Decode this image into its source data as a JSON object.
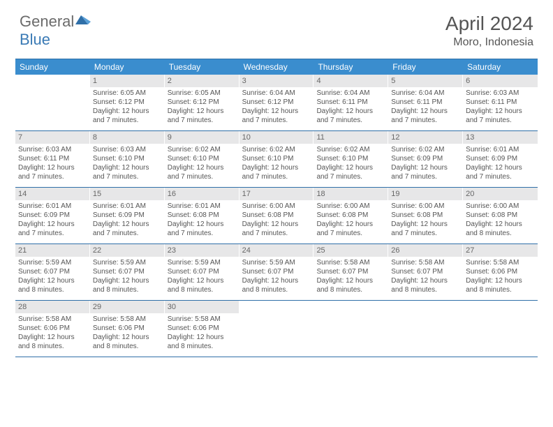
{
  "logo": {
    "text1": "General",
    "text2": "Blue"
  },
  "title": "April 2024",
  "location": "Moro, Indonesia",
  "colors": {
    "header_bg": "#3a8dce",
    "border": "#2f6fa8",
    "daynum_bg": "#e7e7e8",
    "text": "#555555"
  },
  "day_names": [
    "Sunday",
    "Monday",
    "Tuesday",
    "Wednesday",
    "Thursday",
    "Friday",
    "Saturday"
  ],
  "weeks": [
    [
      {
        "n": "",
        "sr": "",
        "ss": "",
        "dl1": "",
        "dl2": ""
      },
      {
        "n": "1",
        "sr": "Sunrise: 6:05 AM",
        "ss": "Sunset: 6:12 PM",
        "dl1": "Daylight: 12 hours",
        "dl2": "and 7 minutes."
      },
      {
        "n": "2",
        "sr": "Sunrise: 6:05 AM",
        "ss": "Sunset: 6:12 PM",
        "dl1": "Daylight: 12 hours",
        "dl2": "and 7 minutes."
      },
      {
        "n": "3",
        "sr": "Sunrise: 6:04 AM",
        "ss": "Sunset: 6:12 PM",
        "dl1": "Daylight: 12 hours",
        "dl2": "and 7 minutes."
      },
      {
        "n": "4",
        "sr": "Sunrise: 6:04 AM",
        "ss": "Sunset: 6:11 PM",
        "dl1": "Daylight: 12 hours",
        "dl2": "and 7 minutes."
      },
      {
        "n": "5",
        "sr": "Sunrise: 6:04 AM",
        "ss": "Sunset: 6:11 PM",
        "dl1": "Daylight: 12 hours",
        "dl2": "and 7 minutes."
      },
      {
        "n": "6",
        "sr": "Sunrise: 6:03 AM",
        "ss": "Sunset: 6:11 PM",
        "dl1": "Daylight: 12 hours",
        "dl2": "and 7 minutes."
      }
    ],
    [
      {
        "n": "7",
        "sr": "Sunrise: 6:03 AM",
        "ss": "Sunset: 6:11 PM",
        "dl1": "Daylight: 12 hours",
        "dl2": "and 7 minutes."
      },
      {
        "n": "8",
        "sr": "Sunrise: 6:03 AM",
        "ss": "Sunset: 6:10 PM",
        "dl1": "Daylight: 12 hours",
        "dl2": "and 7 minutes."
      },
      {
        "n": "9",
        "sr": "Sunrise: 6:02 AM",
        "ss": "Sunset: 6:10 PM",
        "dl1": "Daylight: 12 hours",
        "dl2": "and 7 minutes."
      },
      {
        "n": "10",
        "sr": "Sunrise: 6:02 AM",
        "ss": "Sunset: 6:10 PM",
        "dl1": "Daylight: 12 hours",
        "dl2": "and 7 minutes."
      },
      {
        "n": "11",
        "sr": "Sunrise: 6:02 AM",
        "ss": "Sunset: 6:10 PM",
        "dl1": "Daylight: 12 hours",
        "dl2": "and 7 minutes."
      },
      {
        "n": "12",
        "sr": "Sunrise: 6:02 AM",
        "ss": "Sunset: 6:09 PM",
        "dl1": "Daylight: 12 hours",
        "dl2": "and 7 minutes."
      },
      {
        "n": "13",
        "sr": "Sunrise: 6:01 AM",
        "ss": "Sunset: 6:09 PM",
        "dl1": "Daylight: 12 hours",
        "dl2": "and 7 minutes."
      }
    ],
    [
      {
        "n": "14",
        "sr": "Sunrise: 6:01 AM",
        "ss": "Sunset: 6:09 PM",
        "dl1": "Daylight: 12 hours",
        "dl2": "and 7 minutes."
      },
      {
        "n": "15",
        "sr": "Sunrise: 6:01 AM",
        "ss": "Sunset: 6:09 PM",
        "dl1": "Daylight: 12 hours",
        "dl2": "and 7 minutes."
      },
      {
        "n": "16",
        "sr": "Sunrise: 6:01 AM",
        "ss": "Sunset: 6:08 PM",
        "dl1": "Daylight: 12 hours",
        "dl2": "and 7 minutes."
      },
      {
        "n": "17",
        "sr": "Sunrise: 6:00 AM",
        "ss": "Sunset: 6:08 PM",
        "dl1": "Daylight: 12 hours",
        "dl2": "and 7 minutes."
      },
      {
        "n": "18",
        "sr": "Sunrise: 6:00 AM",
        "ss": "Sunset: 6:08 PM",
        "dl1": "Daylight: 12 hours",
        "dl2": "and 7 minutes."
      },
      {
        "n": "19",
        "sr": "Sunrise: 6:00 AM",
        "ss": "Sunset: 6:08 PM",
        "dl1": "Daylight: 12 hours",
        "dl2": "and 7 minutes."
      },
      {
        "n": "20",
        "sr": "Sunrise: 6:00 AM",
        "ss": "Sunset: 6:08 PM",
        "dl1": "Daylight: 12 hours",
        "dl2": "and 8 minutes."
      }
    ],
    [
      {
        "n": "21",
        "sr": "Sunrise: 5:59 AM",
        "ss": "Sunset: 6:07 PM",
        "dl1": "Daylight: 12 hours",
        "dl2": "and 8 minutes."
      },
      {
        "n": "22",
        "sr": "Sunrise: 5:59 AM",
        "ss": "Sunset: 6:07 PM",
        "dl1": "Daylight: 12 hours",
        "dl2": "and 8 minutes."
      },
      {
        "n": "23",
        "sr": "Sunrise: 5:59 AM",
        "ss": "Sunset: 6:07 PM",
        "dl1": "Daylight: 12 hours",
        "dl2": "and 8 minutes."
      },
      {
        "n": "24",
        "sr": "Sunrise: 5:59 AM",
        "ss": "Sunset: 6:07 PM",
        "dl1": "Daylight: 12 hours",
        "dl2": "and 8 minutes."
      },
      {
        "n": "25",
        "sr": "Sunrise: 5:58 AM",
        "ss": "Sunset: 6:07 PM",
        "dl1": "Daylight: 12 hours",
        "dl2": "and 8 minutes."
      },
      {
        "n": "26",
        "sr": "Sunrise: 5:58 AM",
        "ss": "Sunset: 6:07 PM",
        "dl1": "Daylight: 12 hours",
        "dl2": "and 8 minutes."
      },
      {
        "n": "27",
        "sr": "Sunrise: 5:58 AM",
        "ss": "Sunset: 6:06 PM",
        "dl1": "Daylight: 12 hours",
        "dl2": "and 8 minutes."
      }
    ],
    [
      {
        "n": "28",
        "sr": "Sunrise: 5:58 AM",
        "ss": "Sunset: 6:06 PM",
        "dl1": "Daylight: 12 hours",
        "dl2": "and 8 minutes."
      },
      {
        "n": "29",
        "sr": "Sunrise: 5:58 AM",
        "ss": "Sunset: 6:06 PM",
        "dl1": "Daylight: 12 hours",
        "dl2": "and 8 minutes."
      },
      {
        "n": "30",
        "sr": "Sunrise: 5:58 AM",
        "ss": "Sunset: 6:06 PM",
        "dl1": "Daylight: 12 hours",
        "dl2": "and 8 minutes."
      },
      {
        "n": "",
        "sr": "",
        "ss": "",
        "dl1": "",
        "dl2": ""
      },
      {
        "n": "",
        "sr": "",
        "ss": "",
        "dl1": "",
        "dl2": ""
      },
      {
        "n": "",
        "sr": "",
        "ss": "",
        "dl1": "",
        "dl2": ""
      },
      {
        "n": "",
        "sr": "",
        "ss": "",
        "dl1": "",
        "dl2": ""
      }
    ]
  ]
}
